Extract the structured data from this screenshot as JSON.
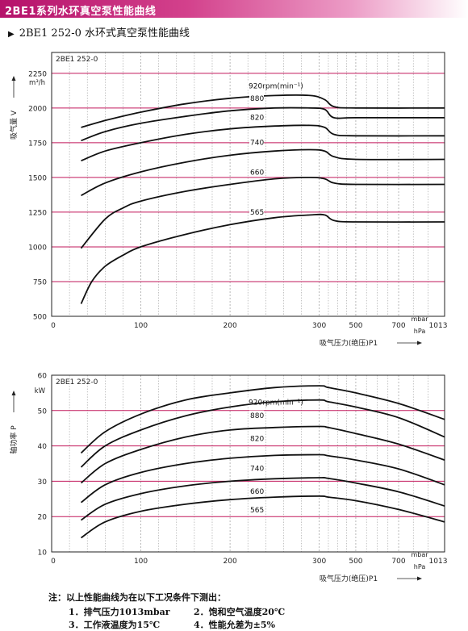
{
  "header": {
    "banner_title": "2BE1系列水环真空泵性能曲线",
    "subtitle": "2BE1 252-0 水环式真空泵性能曲线",
    "subtitle_marker": "▶"
  },
  "colors": {
    "banner": "#c21d76",
    "grid_major": "#c2185b",
    "grid_minor": "#9a9a9a",
    "curve": "#111111"
  },
  "chart_data": [
    {
      "type": "line",
      "title": "2BE1 252-0",
      "xlabel": "吸气压力(绝压)P1",
      "ylabel": "吸气量 V",
      "yunit": "m³/h",
      "xunit_top": "mbar",
      "xunit_bottom": "hPa",
      "x_ticks": [
        "0",
        "100",
        "200",
        "300",
        "500",
        "700",
        "1013"
      ],
      "y_ticks": [
        "500",
        "750",
        "1000",
        "1250",
        "1500",
        "1750",
        "2000",
        "2250"
      ],
      "ylim": [
        500,
        2400
      ],
      "grid": true,
      "series": [
        {
          "name": "920rpm(min⁻¹)",
          "points": [
            [
              33,
              1860
            ],
            [
              60,
              1910
            ],
            [
              100,
              1970
            ],
            [
              150,
              2030
            ],
            [
              200,
              2070
            ],
            [
              250,
              2090
            ],
            [
              290,
              2090
            ],
            [
              330,
              2060
            ],
            [
              380,
              2010
            ],
            [
              500,
              2000
            ],
            [
              1013,
              2000
            ]
          ]
        },
        {
          "name": "880",
          "points": [
            [
              33,
              1765
            ],
            [
              60,
              1830
            ],
            [
              100,
              1890
            ],
            [
              150,
              1940
            ],
            [
              200,
              1980
            ],
            [
              250,
              2000
            ],
            [
              290,
              2000
            ],
            [
              330,
              1990
            ],
            [
              380,
              1930
            ],
            [
              500,
              1930
            ],
            [
              1013,
              1930
            ]
          ]
        },
        {
          "name": "820",
          "points": [
            [
              33,
              1620
            ],
            [
              60,
              1690
            ],
            [
              100,
              1750
            ],
            [
              150,
              1810
            ],
            [
              200,
              1850
            ],
            [
              250,
              1870
            ],
            [
              290,
              1875
            ],
            [
              330,
              1860
            ],
            [
              380,
              1810
            ],
            [
              500,
              1800
            ],
            [
              1013,
              1800
            ]
          ]
        },
        {
          "name": "740",
          "points": [
            [
              33,
              1370
            ],
            [
              60,
              1460
            ],
            [
              100,
              1540
            ],
            [
              150,
              1610
            ],
            [
              200,
              1660
            ],
            [
              250,
              1690
            ],
            [
              290,
              1700
            ],
            [
              330,
              1690
            ],
            [
              380,
              1650
            ],
            [
              500,
              1630
            ],
            [
              1013,
              1630
            ]
          ]
        },
        {
          "name": "660",
          "points": [
            [
              33,
              990
            ],
            [
              60,
              1200
            ],
            [
              80,
              1280
            ],
            [
              100,
              1330
            ],
            [
              150,
              1400
            ],
            [
              200,
              1450
            ],
            [
              250,
              1490
            ],
            [
              290,
              1500
            ],
            [
              330,
              1490
            ],
            [
              380,
              1460
            ],
            [
              500,
              1450
            ],
            [
              1013,
              1450
            ]
          ]
        },
        {
          "name": "565",
          "points": [
            [
              33,
              590
            ],
            [
              45,
              750
            ],
            [
              60,
              860
            ],
            [
              80,
              940
            ],
            [
              100,
              1000
            ],
            [
              150,
              1090
            ],
            [
              200,
              1160
            ],
            [
              250,
              1210
            ],
            [
              290,
              1230
            ],
            [
              330,
              1230
            ],
            [
              380,
              1190
            ],
            [
              500,
              1180
            ],
            [
              1013,
              1180
            ]
          ]
        }
      ]
    },
    {
      "type": "line",
      "title": "2BE1 252-0",
      "xlabel": "吸气压力(绝压)P1",
      "ylabel": "轴功率 P",
      "yunit": "kW",
      "xunit_top": "mbar",
      "xunit_bottom": "hPa",
      "x_ticks": [
        "0",
        "100",
        "200",
        "300",
        "500",
        "700",
        "1013"
      ],
      "y_ticks": [
        "10",
        "20",
        "30",
        "40",
        "50",
        "60"
      ],
      "ylim": [
        10,
        60
      ],
      "grid": true,
      "series": [
        {
          "name": "920rpm(min⁻¹)",
          "points": [
            [
              33,
              38
            ],
            [
              60,
              44
            ],
            [
              100,
              49
            ],
            [
              150,
              53
            ],
            [
              200,
              55
            ],
            [
              250,
              56.5
            ],
            [
              300,
              57
            ],
            [
              350,
              56.5
            ],
            [
              500,
              55
            ],
            [
              700,
              52
            ],
            [
              1013,
              47.5
            ]
          ]
        },
        {
          "name": "880",
          "points": [
            [
              33,
              34
            ],
            [
              60,
              40
            ],
            [
              100,
              44.5
            ],
            [
              150,
              48.5
            ],
            [
              200,
              51
            ],
            [
              250,
              52.5
            ],
            [
              300,
              53
            ],
            [
              350,
              52.5
            ],
            [
              500,
              51
            ],
            [
              700,
              48
            ],
            [
              1013,
              42.5
            ]
          ]
        },
        {
          "name": "820",
          "points": [
            [
              33,
              29.5
            ],
            [
              60,
              35
            ],
            [
              100,
              39
            ],
            [
              150,
              42.5
            ],
            [
              200,
              44.5
            ],
            [
              250,
              45.2
            ],
            [
              300,
              45.5
            ],
            [
              350,
              45.2
            ],
            [
              500,
              43.5
            ],
            [
              700,
              40.5
            ],
            [
              1013,
              36
            ]
          ]
        },
        {
          "name": "740",
          "points": [
            [
              33,
              24
            ],
            [
              60,
              29
            ],
            [
              100,
              32.5
            ],
            [
              150,
              35
            ],
            [
              200,
              36.5
            ],
            [
              250,
              37.3
            ],
            [
              300,
              37.5
            ],
            [
              350,
              37.2
            ],
            [
              500,
              36
            ],
            [
              700,
              33.5
            ],
            [
              1013,
              29
            ]
          ]
        },
        {
          "name": "660",
          "points": [
            [
              33,
              19
            ],
            [
              60,
              23.5
            ],
            [
              100,
              26.5
            ],
            [
              150,
              28.7
            ],
            [
              200,
              30
            ],
            [
              250,
              30.7
            ],
            [
              300,
              31
            ],
            [
              350,
              30.8
            ],
            [
              500,
              29.5
            ],
            [
              700,
              27
            ],
            [
              1013,
              23
            ]
          ]
        },
        {
          "name": "565",
          "points": [
            [
              33,
              14
            ],
            [
              60,
              18.5
            ],
            [
              100,
              21.5
            ],
            [
              150,
              23.5
            ],
            [
              200,
              24.8
            ],
            [
              250,
              25.5
            ],
            [
              300,
              25.8
            ],
            [
              350,
              25.5
            ],
            [
              500,
              24.5
            ],
            [
              700,
              22
            ],
            [
              1013,
              18.5
            ]
          ]
        }
      ]
    }
  ],
  "notes": {
    "head": "注：以上性能曲线为在以下工况条件下测出：",
    "items": [
      "1．排气压力1013mbar",
      "2．饱和空气温度20℃",
      "3．工作液温度为15℃",
      "4．性能允差为±5%"
    ]
  }
}
